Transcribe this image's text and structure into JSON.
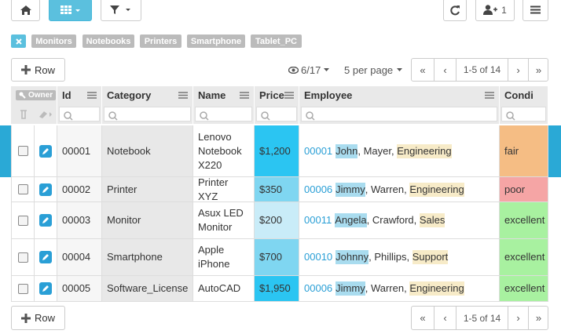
{
  "toolbar": {
    "user_count": "1"
  },
  "filter_tags": [
    "Monitors",
    "Notebooks",
    "Printers",
    "Smartphone",
    "Tablet_PC"
  ],
  "add_row": "Row",
  "visible_columns": "6/17",
  "per_page": "5 per page",
  "pagination": {
    "first": "«",
    "prev": "‹",
    "range": "1-5 of 14",
    "next": "›",
    "last": "»"
  },
  "table": {
    "headers": [
      "Owner",
      "Id",
      "Category",
      "Name",
      "Price",
      "Employee",
      "Condi"
    ],
    "rows": [
      {
        "id": "00001",
        "category": "Notebook",
        "name": "Lenovo Notebook X220",
        "price": "$1,200",
        "employee": {
          "id": "00001",
          "first_name": "John",
          "last_name": "Mayer",
          "department": "Engineering"
        },
        "condition": "fair"
      },
      {
        "id": "00002",
        "category": "Printer",
        "name": "Printer XYZ",
        "price": "$350",
        "employee": {
          "id": "00006",
          "first_name": "Jimmy",
          "last_name": "Warren",
          "department": "Engineering"
        },
        "condition": "poor"
      },
      {
        "id": "00003",
        "category": "Monitor",
        "name": "Asux LED Monitor",
        "price": "$200",
        "employee": {
          "id": "00011",
          "first_name": "Angela",
          "last_name": "Crawford",
          "department": "Sales"
        },
        "condition": "excellent"
      },
      {
        "id": "00004",
        "category": "Smartphone",
        "name": "Apple iPhone",
        "price": "$700",
        "employee": {
          "id": "00010",
          "first_name": "Johnny",
          "last_name": "Phillips",
          "department": "Support"
        },
        "condition": "excellent"
      },
      {
        "id": "00005",
        "category": "Software_License",
        "name": "AutoCAD",
        "price": "$1,950",
        "employee": {
          "id": "00006",
          "first_name": "Jimmy",
          "last_name": "Warren",
          "department": "Engineering"
        },
        "condition": "excellent"
      }
    ]
  }
}
